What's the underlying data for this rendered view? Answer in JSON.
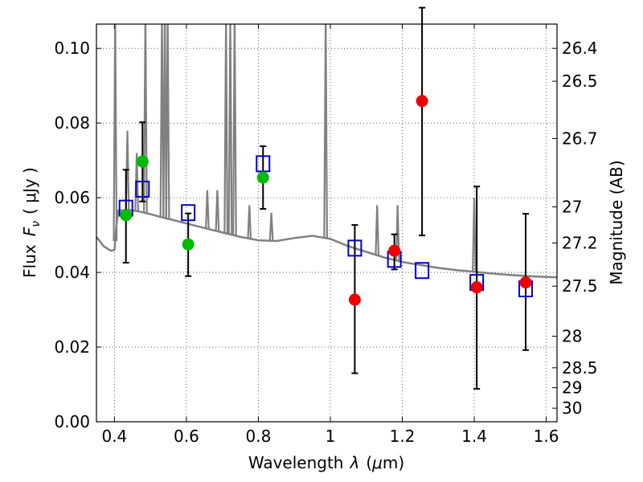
{
  "chart_data": {
    "type": "scatter",
    "xlabel_main": "Wavelength",
    "xlabel_symbol": "λ",
    "xlabel_unit_open": "(",
    "xlabel_unit_mu": "μ",
    "xlabel_unit_rest": "m)",
    "ylabel_main": "Flux",
    "ylabel_symbol": "F",
    "ylabel_sub": "ν",
    "ylabel_unit": "( μJy )",
    "y2label": "Magnitude (AB)",
    "xlim": [
      0.35,
      1.63
    ],
    "ylim": [
      0.0,
      0.1065
    ],
    "x_ticks": [
      {
        "value": 0.4,
        "label": "0.4"
      },
      {
        "value": 0.6,
        "label": "0.6"
      },
      {
        "value": 0.8,
        "label": "0.8"
      },
      {
        "value": 1.0,
        "label": "1"
      },
      {
        "value": 1.2,
        "label": "1.2"
      },
      {
        "value": 1.4,
        "label": "1.4"
      },
      {
        "value": 1.6,
        "label": "1.6"
      }
    ],
    "y_ticks": [
      {
        "value": 0.0,
        "label": "0.00"
      },
      {
        "value": 0.02,
        "label": "0.02"
      },
      {
        "value": 0.04,
        "label": "0.04"
      },
      {
        "value": 0.06,
        "label": "0.06"
      },
      {
        "value": 0.08,
        "label": "0.08"
      },
      {
        "value": 0.1,
        "label": "0.10"
      }
    ],
    "y2_ticks": [
      {
        "label": "26.4",
        "value": 26.4
      },
      {
        "label": "26.5",
        "value": 26.5
      },
      {
        "label": "26.7",
        "value": 26.7
      },
      {
        "label": "27",
        "value": 27.0
      },
      {
        "label": "27.2",
        "value": 27.2
      },
      {
        "label": "27.5",
        "value": 27.5
      },
      {
        "label": "28",
        "value": 28.0
      },
      {
        "label": "28.5",
        "value": 28.5
      },
      {
        "label": "29",
        "value": 29.0
      },
      {
        "label": "30",
        "value": 30.0
      }
    ],
    "grid": true,
    "series": [
      {
        "name": "model-spectrum",
        "kind": "line",
        "color": "#808080",
        "x": [
          0.35,
          0.37,
          0.39,
          0.4,
          0.405,
          0.41,
          0.43,
          0.45,
          0.47,
          0.5,
          0.53,
          0.56,
          0.6,
          0.65,
          0.7,
          0.75,
          0.8,
          0.85,
          0.9,
          0.95,
          1.0,
          1.05,
          1.1,
          1.15,
          1.2,
          1.25,
          1.3,
          1.35,
          1.4,
          1.45,
          1.5,
          1.55,
          1.6,
          1.63
        ],
        "y": [
          0.0495,
          0.047,
          0.0458,
          0.046,
          0.052,
          0.0565,
          0.0567,
          0.0566,
          0.0563,
          0.0556,
          0.0548,
          0.0541,
          0.0531,
          0.0519,
          0.0507,
          0.0495,
          0.0486,
          0.0484,
          0.0492,
          0.0498,
          0.049,
          0.047,
          0.0455,
          0.044,
          0.0428,
          0.042,
          0.0412,
          0.0406,
          0.0402,
          0.0397,
          0.0393,
          0.039,
          0.0388,
          0.0387
        ]
      },
      {
        "name": "spectrum-emission-lines",
        "kind": "spikes",
        "color": "#808080",
        "lines": [
          {
            "x": 0.402,
            "peak": 0.11
          },
          {
            "x": 0.436,
            "peak": 0.078
          },
          {
            "x": 0.462,
            "peak": 0.072
          },
          {
            "x": 0.486,
            "peak": 0.11
          },
          {
            "x": 0.532,
            "peak": 0.11
          },
          {
            "x": 0.54,
            "peak": 0.11
          },
          {
            "x": 0.548,
            "peak": 0.11
          },
          {
            "x": 0.658,
            "peak": 0.062
          },
          {
            "x": 0.686,
            "peak": 0.062
          },
          {
            "x": 0.71,
            "peak": 0.11
          },
          {
            "x": 0.722,
            "peak": 0.11
          },
          {
            "x": 0.734,
            "peak": 0.11
          },
          {
            "x": 0.775,
            "peak": 0.058
          },
          {
            "x": 0.836,
            "peak": 0.056
          },
          {
            "x": 0.987,
            "peak": 0.11
          },
          {
            "x": 1.13,
            "peak": 0.058
          },
          {
            "x": 1.187,
            "peak": 0.058
          },
          {
            "x": 1.4,
            "peak": 0.06
          }
        ]
      },
      {
        "name": "model-photometry",
        "kind": "open-square",
        "color": "#0000cc",
        "x": [
          0.432,
          0.478,
          0.605,
          0.813,
          1.068,
          1.178,
          1.255,
          1.407,
          1.543
        ],
        "y": [
          0.0572,
          0.0623,
          0.056,
          0.0691,
          0.0465,
          0.0435,
          0.0405,
          0.0373,
          0.0356
        ]
      },
      {
        "name": "observed-detections",
        "kind": "filled-circle",
        "color": "#00bb00",
        "x": [
          0.432,
          0.478,
          0.605,
          0.813
        ],
        "y": [
          0.0553,
          0.0697,
          0.0475,
          0.0654
        ],
        "yerr_low": [
          0.0127,
          0.0107,
          0.0085,
          0.0084
        ],
        "yerr_high": [
          0.0122,
          0.0105,
          0.0083,
          0.0084
        ]
      },
      {
        "name": "observed-limits",
        "kind": "filled-circle",
        "color": "#ee0000",
        "x": [
          1.068,
          1.178,
          1.255,
          1.407,
          1.543
        ],
        "y": [
          0.0327,
          0.0458,
          0.0859,
          0.036,
          0.0373
        ],
        "yerr_low": [
          0.0197,
          0.005,
          0.036,
          0.0272,
          0.0181
        ],
        "yerr_high": [
          0.02,
          0.0044,
          0.025,
          0.027,
          0.0184
        ]
      }
    ]
  }
}
